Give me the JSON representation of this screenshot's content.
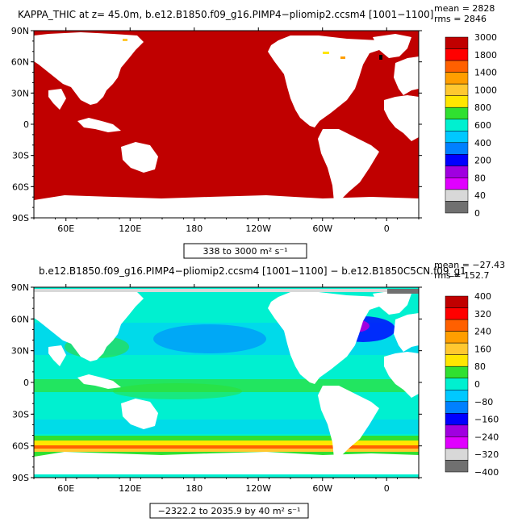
{
  "colors": {
    "kappa_field": "#c00000",
    "land": "#ffffff",
    "ocean_anom_base": "#00f0d0"
  },
  "chart_data": [
    {
      "type": "heatmap",
      "title": "KAPPA_THIC at z=  45.0m, b.e12.B1850.f09_g16.PIMP4−pliomip2.ccsm4 [1001−1100]",
      "stats": [
        "mean = 2828",
        "rms = 2846"
      ],
      "range_label": "338 to 3000 m² s⁻¹",
      "lat_ticks": [
        "90N",
        "60N",
        "30N",
        "0",
        "30S",
        "60S",
        "90S"
      ],
      "lon_ticks": [
        "60E",
        "120E",
        "180",
        "120W",
        "60W",
        "0"
      ],
      "lon_tick_values": [
        60,
        120,
        180,
        240,
        300,
        360
      ],
      "lat_tick_values": [
        90,
        60,
        30,
        0,
        -30,
        -60,
        -90
      ],
      "xlim": [
        30,
        390
      ],
      "ylim": [
        -90,
        90
      ],
      "colorbar_labels": [
        "3000",
        "1800",
        "1400",
        "1000",
        "800",
        "600",
        "400",
        "200",
        "80",
        "40",
        "0"
      ],
      "colorbar_colors": [
        "#c00000",
        "#ff0000",
        "#ff6000",
        "#ff9e00",
        "#ffc830",
        "#ffe600",
        "#30e030",
        "#00f0d0",
        "#00c8ff",
        "#0080ff",
        "#0000ff",
        "#a000e0",
        "#e000ff",
        "#d8d8d8",
        "#707070"
      ],
      "dominant_value_color": "#c00000"
    },
    {
      "type": "heatmap",
      "title": "b.e12.B1850.f09_g16.PIMP4−pliomip2.ccsm4 [1001−1100] − b.e12.B1850C5CN.f09_g1",
      "stats": [
        "mean = −27.43",
        "rms = 152.7"
      ],
      "range_label": "−2322.2 to 2035.9 by 40 m² s⁻¹",
      "lat_ticks": [
        "90N",
        "60N",
        "30N",
        "0",
        "30S",
        "60S",
        "90S"
      ],
      "lon_ticks": [
        "60E",
        "120E",
        "180",
        "120W",
        "60W",
        "0"
      ],
      "lon_tick_values": [
        60,
        120,
        180,
        240,
        300,
        360
      ],
      "lat_tick_values": [
        90,
        60,
        30,
        0,
        -30,
        -60,
        -90
      ],
      "xlim": [
        30,
        390
      ],
      "ylim": [
        -90,
        90
      ],
      "colorbar_labels": [
        "400",
        "320",
        "240",
        "160",
        "80",
        "0",
        "−80",
        "−160",
        "−240",
        "−320",
        "−400"
      ],
      "colorbar_colors": [
        "#c00000",
        "#ff0000",
        "#ff6000",
        "#ff9e00",
        "#ffc830",
        "#ffe600",
        "#30e030",
        "#00f0d0",
        "#00c8ff",
        "#0080ff",
        "#0000ff",
        "#a000e0",
        "#e000ff",
        "#d8d8d8",
        "#707070"
      ]
    }
  ]
}
